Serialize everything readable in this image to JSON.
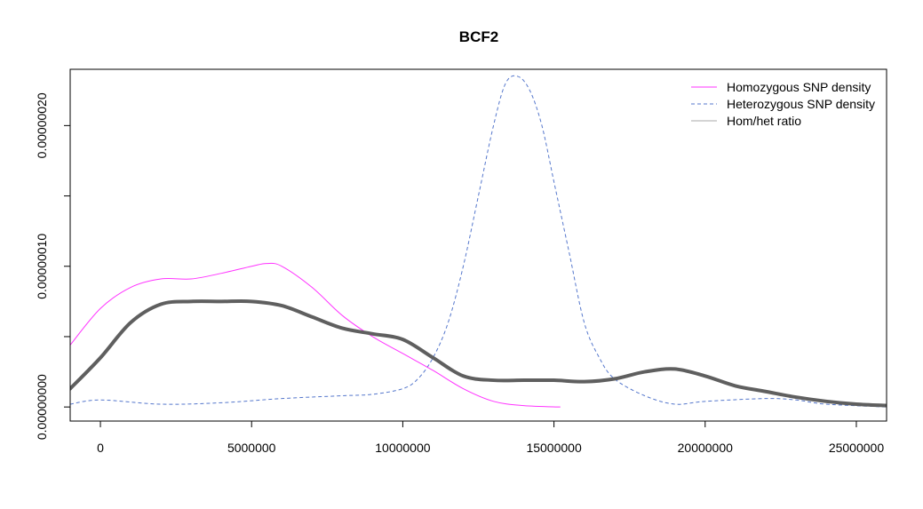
{
  "chart_data": {
    "type": "line",
    "title": "BCF2",
    "xlabel": "",
    "ylabel": "",
    "xlim": [
      -1000000,
      26000000
    ],
    "ylim": [
      -1e-08,
      2.4e-07
    ],
    "x_ticks": [
      0,
      5000000,
      10000000,
      15000000,
      20000000,
      25000000
    ],
    "x_tick_labels": [
      "0",
      "5000000",
      "10000000",
      "15000000",
      "20000000",
      "25000000"
    ],
    "y_ticks": [
      0,
      5e-08,
      1e-07,
      1.5e-07,
      2e-07
    ],
    "y_tick_labels": [
      "0.00000000",
      "",
      "0.00000010",
      "",
      "0.00000020"
    ],
    "grid": false,
    "legend_position": "top-right",
    "series": [
      {
        "name": "Homozygous SNP density",
        "color": "#ff33ff",
        "dash": "solid",
        "width": 1,
        "x": [
          -1000000,
          0,
          1000000,
          2000000,
          3000000,
          4000000,
          5000000,
          5500000,
          6000000,
          7000000,
          8000000,
          9000000,
          10000000,
          11000000,
          12000000,
          13000000,
          14000000,
          15200000
        ],
        "y": [
          4.4e-08,
          7e-08,
          8.5e-08,
          9.1e-08,
          9.1e-08,
          9.5e-08,
          1e-07,
          1.02e-07,
          1e-07,
          8.5e-08,
          6.5e-08,
          5e-08,
          3.8e-08,
          2.6e-08,
          1.3e-08,
          4e-09,
          1e-09,
          0.0
        ]
      },
      {
        "name": "Heterozygous SNP density",
        "color": "#5577cc",
        "dash": "dashed",
        "width": 1,
        "x": [
          -1000000,
          0,
          2000000,
          4000000,
          6000000,
          8000000,
          9000000,
          10000000,
          10500000,
          11000000,
          11500000,
          12000000,
          12500000,
          13000000,
          13400000,
          13800000,
          14200000,
          14600000,
          15000000,
          15500000,
          16000000,
          16500000,
          17000000,
          18000000,
          19000000,
          20000000,
          22000000,
          23000000,
          24000000,
          26000000
        ],
        "y": [
          2e-09,
          5e-09,
          2e-09,
          3e-09,
          6e-09,
          8e-09,
          9e-09,
          1.3e-08,
          2e-08,
          3.5e-08,
          6e-08,
          1e-07,
          1.5e-07,
          2e-07,
          2.3e-07,
          2.35e-07,
          2.25e-07,
          2e-07,
          1.6e-07,
          1.1e-07,
          6e-08,
          3.5e-08,
          2e-08,
          8e-09,
          2e-09,
          4e-09,
          6e-09,
          5e-09,
          2e-09,
          0.0
        ]
      },
      {
        "name": "Hom/het ratio",
        "color": "#5f5f5f",
        "legend_color": "#aaaaaa",
        "dash": "solid",
        "width": 4,
        "x": [
          -1000000,
          0,
          1000000,
          2000000,
          3000000,
          4000000,
          5000000,
          6000000,
          7000000,
          8000000,
          9000000,
          10000000,
          11000000,
          12000000,
          13000000,
          14000000,
          15000000,
          16000000,
          17000000,
          18000000,
          19000000,
          20000000,
          21000000,
          22000000,
          23000000,
          24000000,
          25000000,
          26000000
        ],
        "y": [
          1.3e-08,
          3.5e-08,
          6e-08,
          7.3e-08,
          7.5e-08,
          7.5e-08,
          7.5e-08,
          7.2e-08,
          6.4e-08,
          5.6e-08,
          5.2e-08,
          4.8e-08,
          3.5e-08,
          2.2e-08,
          1.9e-08,
          1.9e-08,
          1.9e-08,
          1.8e-08,
          2e-08,
          2.5e-08,
          2.7e-08,
          2.2e-08,
          1.5e-08,
          1.1e-08,
          7e-09,
          4e-09,
          2e-09,
          1e-09
        ]
      }
    ]
  }
}
